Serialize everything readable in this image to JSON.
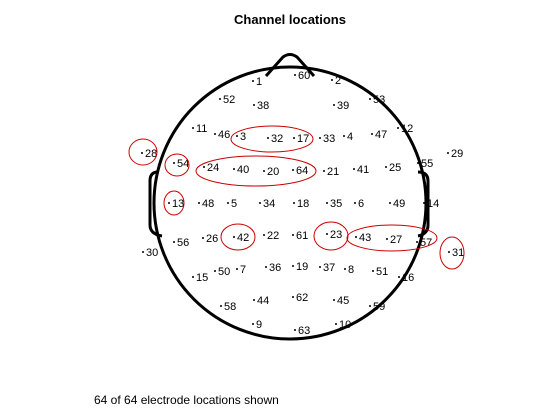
{
  "title": "Channel locations",
  "footer": "64 of 64 electrode locations shown",
  "colors": {
    "outline": "#000000",
    "highlight": "#cc0000",
    "background": "#ffffff"
  },
  "electrodes": [
    {
      "label": "1",
      "x": 0,
      "y": 0
    },
    {
      "label": "60",
      "x": 0,
      "y": 0
    },
    {
      "label": "2",
      "x": 0,
      "y": 0
    },
    {
      "label": "52",
      "x": 0,
      "y": 0
    },
    {
      "label": "38",
      "x": 0,
      "y": 0
    },
    {
      "label": "39",
      "x": 0,
      "y": 0
    },
    {
      "label": "53",
      "x": 0,
      "y": 0
    },
    {
      "label": "11",
      "x": 0,
      "y": 0
    },
    {
      "label": "46",
      "x": 0,
      "y": 0
    },
    {
      "label": "3",
      "x": 0,
      "y": 0
    },
    {
      "label": "32",
      "x": 0,
      "y": 0
    },
    {
      "label": "17",
      "x": 0,
      "y": 0
    },
    {
      "label": "33",
      "x": 0,
      "y": 0
    },
    {
      "label": "4",
      "x": 0,
      "y": 0
    },
    {
      "label": "47",
      "x": 0,
      "y": 0
    },
    {
      "label": "12",
      "x": 0,
      "y": 0
    },
    {
      "label": "28",
      "x": 0,
      "y": 0
    },
    {
      "label": "54",
      "x": 0,
      "y": 0
    },
    {
      "label": "24",
      "x": 0,
      "y": 0
    },
    {
      "label": "40",
      "x": 0,
      "y": 0
    },
    {
      "label": "20",
      "x": 0,
      "y": 0
    },
    {
      "label": "64",
      "x": 0,
      "y": 0
    },
    {
      "label": "21",
      "x": 0,
      "y": 0
    },
    {
      "label": "41",
      "x": 0,
      "y": 0
    },
    {
      "label": "25",
      "x": 0,
      "y": 0
    },
    {
      "label": "55",
      "x": 0,
      "y": 0
    },
    {
      "label": "29",
      "x": 0,
      "y": 0
    },
    {
      "label": "13",
      "x": 0,
      "y": 0
    },
    {
      "label": "48",
      "x": 0,
      "y": 0
    },
    {
      "label": "5",
      "x": 0,
      "y": 0
    },
    {
      "label": "34",
      "x": 0,
      "y": 0
    },
    {
      "label": "18",
      "x": 0,
      "y": 0
    },
    {
      "label": "35",
      "x": 0,
      "y": 0
    },
    {
      "label": "6",
      "x": 0,
      "y": 0
    },
    {
      "label": "49",
      "x": 0,
      "y": 0
    },
    {
      "label": "14",
      "x": 0,
      "y": 0
    },
    {
      "label": "56",
      "x": 0,
      "y": 0
    },
    {
      "label": "26",
      "x": 0,
      "y": 0
    },
    {
      "label": "42",
      "x": 0,
      "y": 0
    },
    {
      "label": "22",
      "x": 0,
      "y": 0
    },
    {
      "label": "61",
      "x": 0,
      "y": 0
    },
    {
      "label": "23",
      "x": 0,
      "y": 0
    },
    {
      "label": "43",
      "x": 0,
      "y": 0
    },
    {
      "label": "27",
      "x": 0,
      "y": 0
    },
    {
      "label": "57",
      "x": 0,
      "y": 0
    },
    {
      "label": "30",
      "x": 0,
      "y": 0
    },
    {
      "label": "31",
      "x": 0,
      "y": 0
    },
    {
      "label": "15",
      "x": 0,
      "y": 0
    },
    {
      "label": "50",
      "x": 0,
      "y": 0
    },
    {
      "label": "7",
      "x": 0,
      "y": 0
    },
    {
      "label": "36",
      "x": 0,
      "y": 0
    },
    {
      "label": "19",
      "x": 0,
      "y": 0
    },
    {
      "label": "37",
      "x": 0,
      "y": 0
    },
    {
      "label": "8",
      "x": 0,
      "y": 0
    },
    {
      "label": "51",
      "x": 0,
      "y": 0
    },
    {
      "label": "16",
      "x": 0,
      "y": 0
    },
    {
      "label": "58",
      "x": 0,
      "y": 0
    },
    {
      "label": "44",
      "x": 0,
      "y": 0
    },
    {
      "label": "62",
      "x": 0,
      "y": 0
    },
    {
      "label": "45",
      "x": 0,
      "y": 0
    },
    {
      "label": "59",
      "x": 0,
      "y": 0
    },
    {
      "label": "9",
      "x": 0,
      "y": 0
    },
    {
      "label": "63",
      "x": 0,
      "y": 0
    },
    {
      "label": "10",
      "x": 0,
      "y": 0
    }
  ]
}
